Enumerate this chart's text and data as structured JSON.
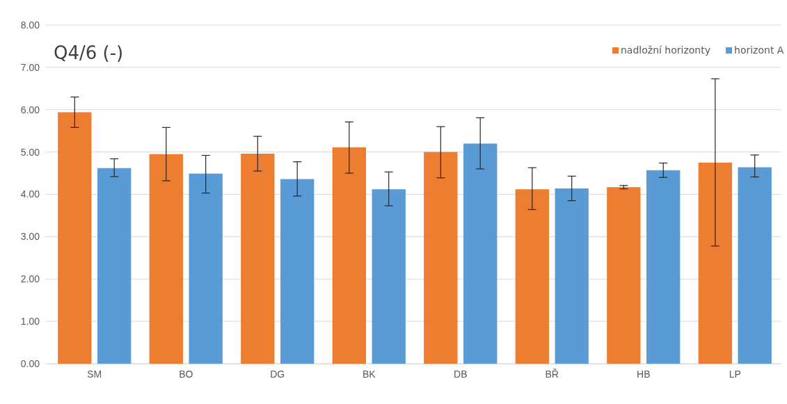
{
  "chart_data": {
    "type": "bar",
    "title": "Q4/6 (-)",
    "categories": [
      "SM",
      "BO",
      "DG",
      "BK",
      "DB",
      "BŘ",
      "HB",
      "LP"
    ],
    "series": [
      {
        "name": "nadložní horizonty",
        "color": "#ed7d31",
        "values": [
          5.94,
          4.95,
          4.96,
          5.11,
          5.0,
          4.12,
          4.17,
          4.75
        ],
        "errors": [
          [
            5.58,
            6.3
          ],
          [
            4.32,
            5.58
          ],
          [
            4.55,
            5.37
          ],
          [
            4.5,
            5.71
          ],
          [
            4.39,
            5.6
          ],
          [
            3.64,
            4.63
          ],
          [
            4.13,
            4.21
          ],
          [
            2.78,
            6.73
          ]
        ]
      },
      {
        "name": "horizont A",
        "color": "#5b9bd5",
        "values": [
          4.62,
          4.49,
          4.36,
          4.12,
          5.2,
          4.14,
          4.57,
          4.64
        ],
        "errors": [
          [
            4.42,
            4.84
          ],
          [
            4.03,
            4.92
          ],
          [
            3.96,
            4.77
          ],
          [
            3.73,
            4.53
          ],
          [
            4.6,
            5.81
          ],
          [
            3.85,
            4.43
          ],
          [
            4.4,
            4.74
          ],
          [
            4.41,
            4.93
          ]
        ]
      }
    ],
    "ylim": [
      0,
      8
    ],
    "yticks": [
      {
        "value": 0,
        "label": "0.00"
      },
      {
        "value": 1,
        "label": "1.00"
      },
      {
        "value": 2,
        "label": "2.00"
      },
      {
        "value": 3,
        "label": "3.00"
      },
      {
        "value": 4,
        "label": "4.00"
      },
      {
        "value": 5,
        "label": "5.00"
      },
      {
        "value": 6,
        "label": "6.00"
      },
      {
        "value": 7,
        "label": "7.00"
      },
      {
        "value": 8,
        "label": "8.00"
      }
    ],
    "grid": "y",
    "legend": "top right"
  }
}
